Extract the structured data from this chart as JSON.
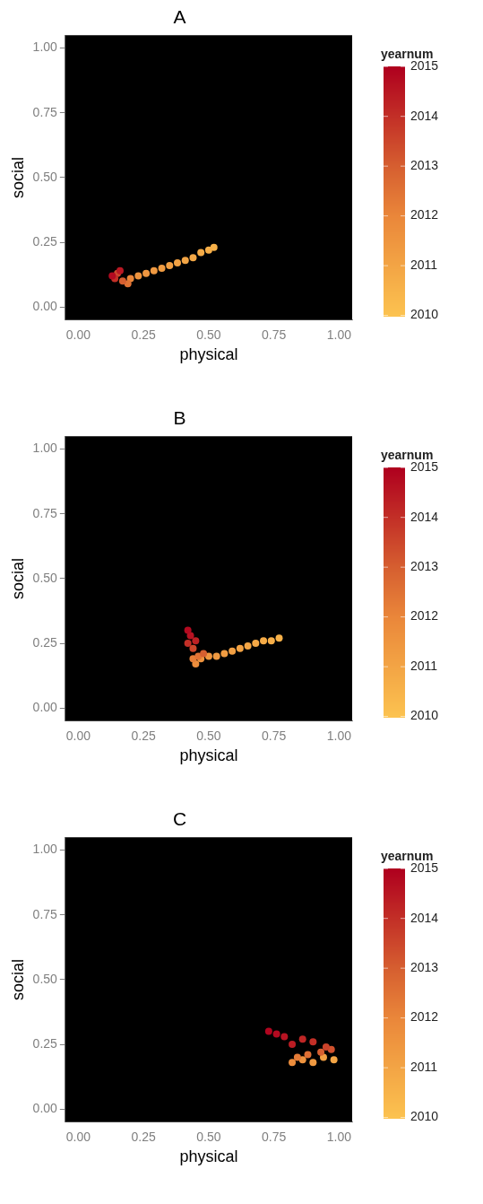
{
  "chart_data": [
    {
      "type": "scatter",
      "title": "A",
      "xlabel": "physical",
      "ylabel": "social",
      "clabel": "yearnum",
      "grid": false,
      "legend": false,
      "xlim": [
        -0.05,
        1.05
      ],
      "ylim": [
        -0.05,
        1.05
      ],
      "xticks": [
        {
          "value": 0,
          "label": "0.00"
        },
        {
          "value": 0.25,
          "label": "0.25"
        },
        {
          "value": 0.5,
          "label": "0.50"
        },
        {
          "value": 0.75,
          "label": "0.75"
        },
        {
          "value": 1,
          "label": "1.00"
        }
      ],
      "yticks": [
        {
          "value": 0,
          "label": "0.00"
        },
        {
          "value": 0.25,
          "label": "0.25"
        },
        {
          "value": 0.5,
          "label": "0.50"
        },
        {
          "value": 0.75,
          "label": "0.75"
        },
        {
          "value": 1,
          "label": "1.00"
        }
      ],
      "clim": [
        2010,
        2015
      ],
      "cticks": [
        2010,
        2011,
        2012,
        2013,
        2014,
        2015
      ],
      "x": [
        0.52,
        0.5,
        0.47,
        0.44,
        0.41,
        0.38,
        0.35,
        0.32,
        0.29,
        0.26,
        0.23,
        0.2,
        0.19,
        0.17,
        0.15,
        0.14,
        0.16,
        0.13
      ],
      "values": [
        0.23,
        0.22,
        0.21,
        0.19,
        0.18,
        0.17,
        0.16,
        0.15,
        0.14,
        0.13,
        0.12,
        0.11,
        0.09,
        0.1,
        0.13,
        0.11,
        0.14,
        0.12
      ],
      "cvalues": [
        2010.6,
        2010.7,
        2010.8,
        2010.9,
        2011,
        2011.1,
        2011.2,
        2011.3,
        2011.4,
        2011.5,
        2011.6,
        2012,
        2012.5,
        2013,
        2013.5,
        2014,
        2014.5,
        2014.8
      ]
    },
    {
      "type": "scatter",
      "title": "B",
      "xlabel": "physical",
      "ylabel": "social",
      "clabel": "yearnum",
      "grid": false,
      "legend": false,
      "xlim": [
        -0.05,
        1.05
      ],
      "ylim": [
        -0.05,
        1.05
      ],
      "xticks": [
        {
          "value": 0,
          "label": "0.00"
        },
        {
          "value": 0.25,
          "label": "0.25"
        },
        {
          "value": 0.5,
          "label": "0.50"
        },
        {
          "value": 0.75,
          "label": "0.75"
        },
        {
          "value": 1,
          "label": "1.00"
        }
      ],
      "yticks": [
        {
          "value": 0,
          "label": "0.00"
        },
        {
          "value": 0.25,
          "label": "0.25"
        },
        {
          "value": 0.5,
          "label": "0.50"
        },
        {
          "value": 0.75,
          "label": "0.75"
        },
        {
          "value": 1,
          "label": "1.00"
        }
      ],
      "clim": [
        2010,
        2015
      ],
      "cticks": [
        2010,
        2011,
        2012,
        2013,
        2014,
        2015
      ],
      "x": [
        0.77,
        0.74,
        0.71,
        0.68,
        0.65,
        0.62,
        0.59,
        0.56,
        0.53,
        0.5,
        0.47,
        0.45,
        0.44,
        0.46,
        0.48,
        0.44,
        0.42,
        0.45,
        0.43,
        0.42
      ],
      "values": [
        0.27,
        0.26,
        0.26,
        0.25,
        0.24,
        0.23,
        0.22,
        0.21,
        0.2,
        0.2,
        0.19,
        0.17,
        0.19,
        0.2,
        0.21,
        0.23,
        0.25,
        0.26,
        0.28,
        0.3
      ],
      "cvalues": [
        2010.6,
        2010.7,
        2010.8,
        2010.9,
        2011,
        2011.1,
        2011.2,
        2011.3,
        2011.4,
        2011.5,
        2011.6,
        2011.8,
        2012.2,
        2012.5,
        2013,
        2013.5,
        2014,
        2014.3,
        2014.6,
        2014.8
      ]
    },
    {
      "type": "scatter",
      "title": "C",
      "xlabel": "physical",
      "ylabel": "social",
      "clabel": "yearnum",
      "grid": false,
      "legend": false,
      "xlim": [
        -0.05,
        1.05
      ],
      "ylim": [
        -0.05,
        1.05
      ],
      "xticks": [
        {
          "value": 0,
          "label": "0.00"
        },
        {
          "value": 0.25,
          "label": "0.25"
        },
        {
          "value": 0.5,
          "label": "0.50"
        },
        {
          "value": 0.75,
          "label": "0.75"
        },
        {
          "value": 1,
          "label": "1.00"
        }
      ],
      "yticks": [
        {
          "value": 0,
          "label": "0.00"
        },
        {
          "value": 0.25,
          "label": "0.25"
        },
        {
          "value": 0.5,
          "label": "0.50"
        },
        {
          "value": 0.75,
          "label": "0.75"
        },
        {
          "value": 1,
          "label": "1.00"
        }
      ],
      "clim": [
        2010,
        2015
      ],
      "cticks": [
        2010,
        2011,
        2012,
        2013,
        2014,
        2015
      ],
      "x": [
        0.98,
        0.94,
        0.9,
        0.86,
        0.82,
        0.84,
        0.88,
        0.93,
        0.97,
        0.95,
        0.9,
        0.86,
        0.82,
        0.79,
        0.76,
        0.73
      ],
      "values": [
        0.19,
        0.2,
        0.18,
        0.19,
        0.18,
        0.2,
        0.21,
        0.22,
        0.23,
        0.24,
        0.26,
        0.27,
        0.25,
        0.28,
        0.29,
        0.3
      ],
      "cvalues": [
        2011,
        2011.2,
        2011.4,
        2011.6,
        2011.8,
        2012.3,
        2012.6,
        2013,
        2013.3,
        2013.6,
        2014,
        2014.2,
        2014.4,
        2014.6,
        2014.8,
        2014.9
      ]
    }
  ]
}
